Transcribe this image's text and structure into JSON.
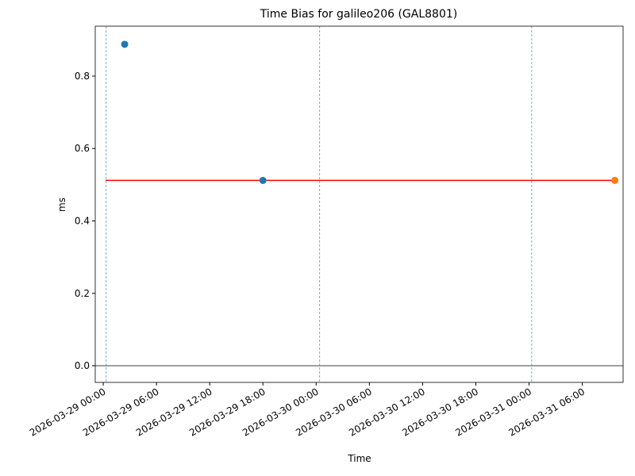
{
  "chart_data": {
    "type": "scatter",
    "title": "Time Bias for galileo206 (GAL8801)",
    "x_label": "Time",
    "y_label": "ms",
    "series": [
      {
        "color": "#1f77b4",
        "x": [
          "2026-03-29 02:25",
          "2026-03-29 18:00"
        ],
        "values": [
          0.888,
          0.512
        ]
      },
      {
        "color": "#ff7f0e",
        "x": [
          "2026-03-31 09:40"
        ],
        "values": [
          0.512
        ]
      }
    ],
    "ref_line": {
      "y": 0.512,
      "x": [
        "2026-03-29 00:16",
        "2026-03-31 09:40"
      ],
      "color": "#ff0000"
    },
    "vlines": {
      "x": [
        "2026-03-29 00:20",
        "2026-03-30 00:24",
        "2026-03-31 00:18"
      ],
      "color": "#1f77b4"
    },
    "baseline": {
      "y": 0,
      "color": "#000000"
    },
    "xlim": [
      "2026-03-28 23:06",
      "2026-03-31 10:36"
    ],
    "xticks": [
      "2026-03-29 00:00",
      "2026-03-29 06:00",
      "2026-03-29 12:00",
      "2026-03-29 18:00",
      "2026-03-30 00:00",
      "2026-03-30 06:00",
      "2026-03-30 12:00",
      "2026-03-30 18:00",
      "2026-03-31 00:00",
      "2026-03-31 06:00"
    ],
    "ylim": [
      -0.046,
      0.938
    ],
    "yticks": [
      {
        "value": 0,
        "label": "0.0"
      },
      {
        "value": 0.2,
        "label": "0.2"
      },
      {
        "value": 0.4,
        "label": "0.4"
      },
      {
        "value": 0.6,
        "label": "0.6"
      },
      {
        "value": 0.8,
        "label": "0.8"
      }
    ]
  }
}
